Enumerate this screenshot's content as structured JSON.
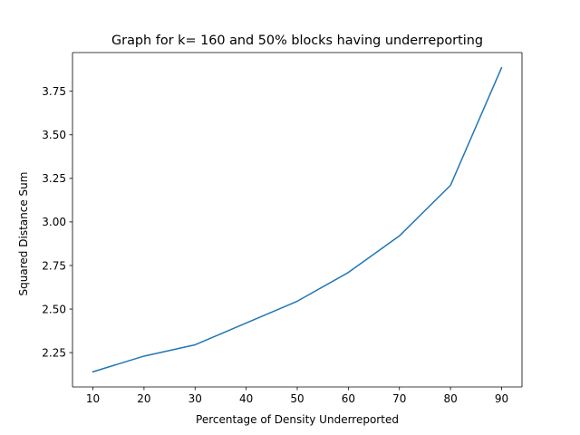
{
  "chart_data": {
    "type": "line",
    "title": "Graph for k= 160 and 50% blocks having underreporting",
    "xlabel": "Percentage of Density Underreported",
    "ylabel": "Squared Distance Sum",
    "x": [
      10,
      20,
      30,
      40,
      50,
      60,
      70,
      80,
      90
    ],
    "series": [
      {
        "values": [
          2.14,
          2.23,
          2.295,
          2.42,
          2.545,
          2.71,
          2.92,
          3.21,
          3.885
        ],
        "color": "#1f77b4"
      }
    ],
    "xlim": [
      6,
      94
    ],
    "ylim": [
      2.053,
      3.972
    ],
    "xticks": [
      10,
      20,
      30,
      40,
      50,
      60,
      70,
      80,
      90
    ],
    "xtick_labels": [
      "10",
      "20",
      "30",
      "40",
      "50",
      "60",
      "70",
      "80",
      "90"
    ],
    "yticks": [
      2.25,
      2.5,
      2.75,
      3.0,
      3.25,
      3.5,
      3.75
    ],
    "ytick_labels": [
      "2.25",
      "2.50",
      "2.75",
      "3.00",
      "3.25",
      "3.50",
      "3.75"
    ],
    "grid": false,
    "legend": false
  }
}
